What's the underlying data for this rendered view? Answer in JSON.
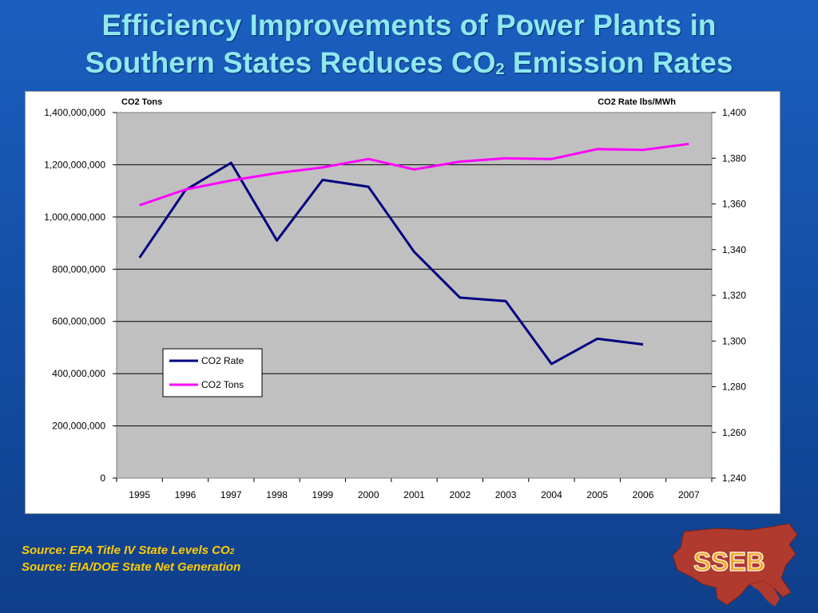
{
  "slide": {
    "title_line1": "Efficiency Improvements of Power Plants in",
    "title_line2_prefix": "Southern States Reduces CO",
    "title_line2_sub": "2",
    "title_line2_suffix": " Emission Rates",
    "source1_prefix": "Source: EPA Title IV State Levels CO",
    "source1_sub": "2",
    "source2": "Source: EIA/DOE State Net Generation",
    "logo_text": "SSEB",
    "colors": {
      "title": "#8fe8f0",
      "source": "#ffcc00",
      "background": "#1450a8",
      "logo_map": "#b03a2e"
    }
  },
  "chart_data": {
    "type": "line",
    "left_axis_title": "CO2 Tons",
    "right_axis_title": "CO2 Rate lbs/MWh",
    "x": [
      "1995",
      "1996",
      "1997",
      "1998",
      "1999",
      "2000",
      "2001",
      "2002",
      "2003",
      "2004",
      "2005",
      "2006",
      "2007"
    ],
    "y_left_ticks": [
      "0",
      "200,000,000",
      "400,000,000",
      "600,000,000",
      "800,000,000",
      "1,000,000,000",
      "1,200,000,000",
      "1,400,000,000"
    ],
    "y_left_range": [
      0,
      1400000000
    ],
    "y_right_ticks": [
      "1,240",
      "1,260",
      "1,280",
      "1,300",
      "1,320",
      "1,340",
      "1,360",
      "1,380",
      "1,400"
    ],
    "y_right_range": [
      1240,
      1400
    ],
    "grid": true,
    "legend_position": "lower-left",
    "series": [
      {
        "name": "CO2 Rate",
        "axis": "right",
        "color": "#000080",
        "values": [
          1336.5,
          1366,
          1378,
          1344,
          1370.5,
          1367.5,
          1339,
          1319,
          1317.5,
          1290,
          1301,
          1298.5,
          null
        ]
      },
      {
        "name": "CO2 Tons",
        "axis": "left",
        "color": "#ff00ff",
        "values": [
          1045000000,
          1105000000,
          1140000000,
          1168000000,
          1190000000,
          1222000000,
          1182000000,
          1212000000,
          1225000000,
          1222000000,
          1260000000,
          1257000000,
          1280000000
        ]
      }
    ]
  }
}
